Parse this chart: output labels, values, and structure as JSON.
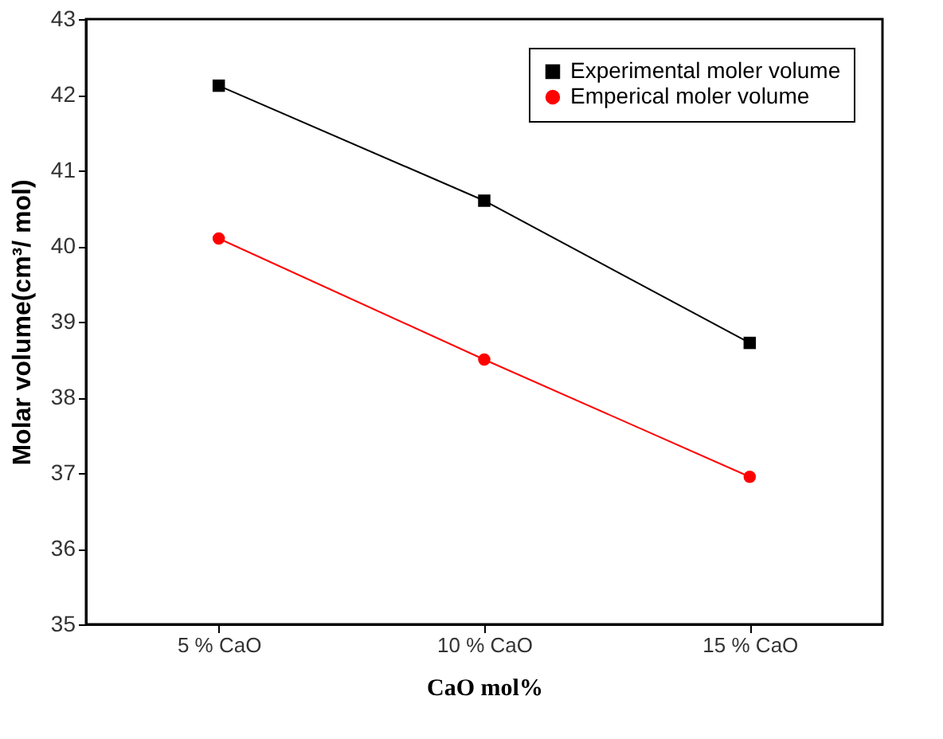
{
  "chart_data": {
    "type": "line",
    "xlabel": "CaO mol%",
    "ylabel": "Molar volume(cm³/ mol)",
    "categories": [
      "5 % CaO",
      "10 % CaO",
      "15 % CaO"
    ],
    "series": [
      {
        "name": "Experimental moler volume",
        "color": "#000000",
        "marker": "square",
        "values": [
          42.12,
          40.6,
          38.72
        ]
      },
      {
        "name": "Emperical moler volume",
        "color": "#ff0000",
        "marker": "circle",
        "values": [
          40.1,
          38.5,
          36.95
        ]
      }
    ],
    "ylim": [
      35,
      43
    ],
    "yticks": [
      35,
      36,
      37,
      38,
      39,
      40,
      41,
      42,
      43
    ],
    "grid": false,
    "legend": "top right",
    "line_style": "solid"
  }
}
